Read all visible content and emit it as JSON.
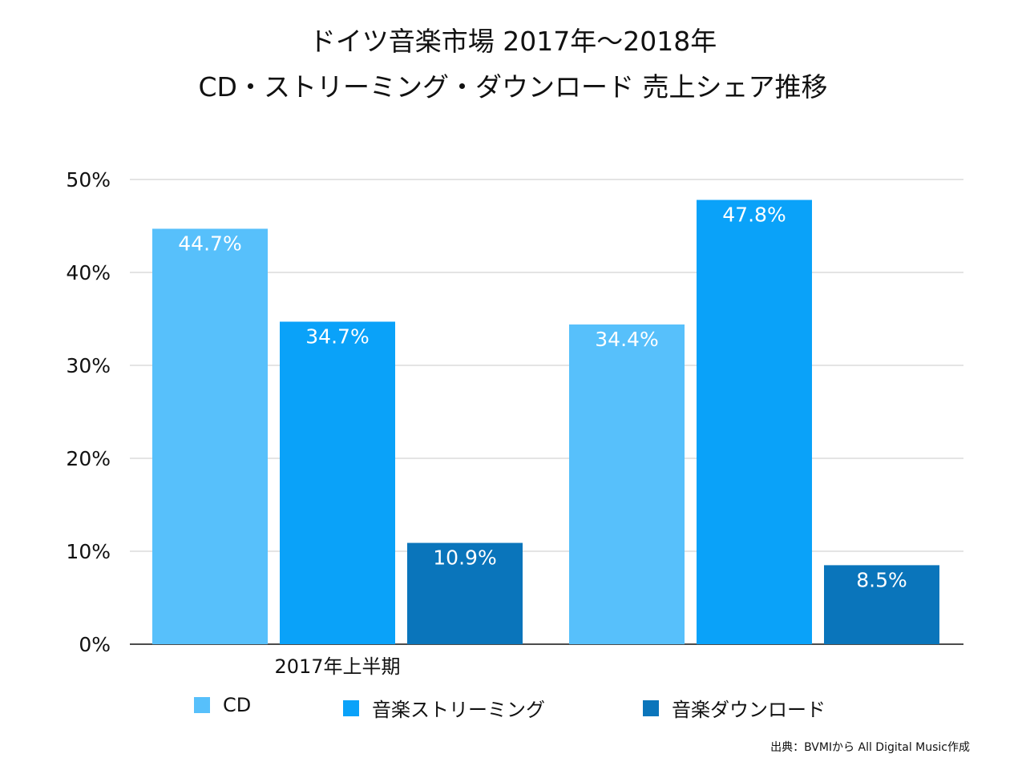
{
  "chart_data": {
    "type": "bar",
    "title": "ドイツ音楽市場 2017年〜2018年",
    "subtitle": "CD・ストリーミング・ダウンロード 売上シェア推移",
    "categories": [
      "2017年上半期",
      ""
    ],
    "series": [
      {
        "name": "CD",
        "color": "#57c0fb",
        "values": [
          44.7,
          34.4
        ],
        "labels": [
          "44.7%",
          "34.4%"
        ]
      },
      {
        "name": "音楽ストリーミング",
        "color": "#0aa2f9",
        "values": [
          34.7,
          47.8
        ],
        "labels": [
          "34.7%",
          "47.8%"
        ]
      },
      {
        "name": "音楽ダウンロード",
        "color": "#0a75bb",
        "values": [
          10.9,
          8.5
        ],
        "labels": [
          "10.9%",
          "8.5%"
        ]
      }
    ],
    "yticks": [
      "0%",
      "10%",
      "20%",
      "30%",
      "40%",
      "50%"
    ],
    "ylim": [
      0,
      50
    ],
    "grid": true,
    "legend_position": "bottom"
  },
  "source": "出典：BVMIから All Digital Music作成"
}
